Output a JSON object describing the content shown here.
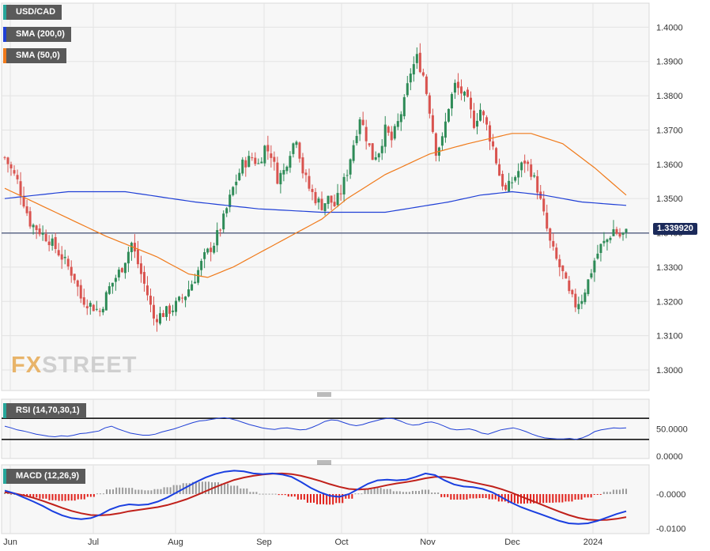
{
  "legend": {
    "symbol": "USD/CAD",
    "sma200": "SMA (200,0)",
    "sma50": "SMA (50,0)",
    "rsi": "RSI (14,70,30,1)",
    "macd": "MACD (12,26,9)"
  },
  "logo": {
    "fx": "FX",
    "street": "STREET"
  },
  "current_price": "1.339920",
  "colors": {
    "up": "#2e8b57",
    "down": "#d9534f",
    "sma200": "#1f3fd6",
    "sma50": "#f07a1a",
    "rsi": "#1f3fd6",
    "macd": "#1a3fe0",
    "signal": "#c0201a",
    "hist_pos": "#9b9b9b",
    "hist_neg": "#e0201a"
  },
  "chart_data": [
    {
      "type": "candlestick",
      "title": "USD/CAD",
      "x_ticks": [
        "Jun",
        "Jul",
        "Aug",
        "Sep",
        "Oct",
        "Nov",
        "Dec",
        "2024"
      ],
      "y_ticks": [
        "1.4000",
        "1.3900",
        "1.3800",
        "1.3700",
        "1.3600",
        "1.3500",
        "1.3400",
        "1.3300",
        "1.3200",
        "1.3100",
        "1.3000"
      ],
      "ylim": [
        1.294,
        1.407
      ],
      "current_price": 1.33992,
      "close_path": [
        [
          0,
          1.362
        ],
        [
          4,
          1.355
        ],
        [
          8,
          1.343
        ],
        [
          14,
          1.338
        ],
        [
          18,
          1.333
        ],
        [
          22,
          1.327
        ],
        [
          24,
          1.321
        ],
        [
          27,
          1.319
        ],
        [
          30,
          1.317
        ],
        [
          33,
          1.324
        ],
        [
          37,
          1.33
        ],
        [
          40,
          1.337
        ],
        [
          43,
          1.328
        ],
        [
          45,
          1.322
        ],
        [
          47,
          1.315
        ],
        [
          49,
          1.316
        ],
        [
          53,
          1.318
        ],
        [
          57,
          1.322
        ],
        [
          60,
          1.327
        ],
        [
          63,
          1.333
        ],
        [
          66,
          1.337
        ],
        [
          69,
          1.344
        ],
        [
          72,
          1.353
        ],
        [
          75,
          1.36
        ],
        [
          78,
          1.362
        ],
        [
          80,
          1.36
        ],
        [
          82,
          1.365
        ],
        [
          84,
          1.363
        ],
        [
          86,
          1.356
        ],
        [
          88,
          1.358
        ],
        [
          90,
          1.364
        ],
        [
          92,
          1.368
        ],
        [
          94,
          1.358
        ],
        [
          96,
          1.353
        ],
        [
          98,
          1.35
        ],
        [
          100,
          1.348
        ],
        [
          102,
          1.35
        ],
        [
          104,
          1.348
        ],
        [
          106,
          1.352
        ],
        [
          108,
          1.358
        ],
        [
          110,
          1.366
        ],
        [
          112,
          1.374
        ],
        [
          114,
          1.368
        ],
        [
          116,
          1.362
        ],
        [
          118,
          1.364
        ],
        [
          120,
          1.37
        ],
        [
          122,
          1.367
        ],
        [
          124,
          1.372
        ],
        [
          126,
          1.378
        ],
        [
          128,
          1.387
        ],
        [
          130,
          1.391
        ],
        [
          132,
          1.386
        ],
        [
          134,
          1.376
        ],
        [
          136,
          1.364
        ],
        [
          138,
          1.367
        ],
        [
          140,
          1.377
        ],
        [
          142,
          1.383
        ],
        [
          144,
          1.381
        ],
        [
          146,
          1.378
        ],
        [
          148,
          1.372
        ],
        [
          150,
          1.376
        ],
        [
          152,
          1.371
        ],
        [
          154,
          1.365
        ],
        [
          156,
          1.357
        ],
        [
          158,
          1.352
        ],
        [
          160,
          1.355
        ],
        [
          162,
          1.358
        ],
        [
          164,
          1.361
        ],
        [
          166,
          1.358
        ],
        [
          168,
          1.353
        ],
        [
          170,
          1.345
        ],
        [
          172,
          1.337
        ],
        [
          174,
          1.332
        ],
        [
          176,
          1.328
        ],
        [
          178,
          1.322
        ],
        [
          180,
          1.319
        ],
        [
          182,
          1.321
        ],
        [
          184,
          1.326
        ],
        [
          186,
          1.332
        ],
        [
          188,
          1.336
        ],
        [
          190,
          1.338
        ],
        [
          192,
          1.341
        ],
        [
          194,
          1.339
        ],
        [
          196,
          1.34
        ]
      ],
      "sma200_path": [
        [
          0,
          1.35
        ],
        [
          20,
          1.352
        ],
        [
          38,
          1.352
        ],
        [
          60,
          1.349
        ],
        [
          80,
          1.347
        ],
        [
          100,
          1.346
        ],
        [
          120,
          1.346
        ],
        [
          140,
          1.349
        ],
        [
          150,
          1.351
        ],
        [
          160,
          1.352
        ],
        [
          170,
          1.351
        ],
        [
          182,
          1.349
        ],
        [
          196,
          1.348
        ]
      ],
      "sma50_path": [
        [
          0,
          1.353
        ],
        [
          16,
          1.346
        ],
        [
          32,
          1.339
        ],
        [
          48,
          1.333
        ],
        [
          58,
          1.328
        ],
        [
          64,
          1.327
        ],
        [
          72,
          1.33
        ],
        [
          86,
          1.337
        ],
        [
          100,
          1.344
        ],
        [
          108,
          1.35
        ],
        [
          120,
          1.357
        ],
        [
          134,
          1.363
        ],
        [
          146,
          1.366
        ],
        [
          160,
          1.369
        ],
        [
          166,
          1.369
        ],
        [
          176,
          1.366
        ],
        [
          186,
          1.359
        ],
        [
          196,
          1.351
        ]
      ]
    },
    {
      "type": "line",
      "title": "RSI (14,70,30,1)",
      "y_ticks": [
        "50.0000",
        "0.0000"
      ],
      "levels": [
        70,
        30
      ],
      "values": [
        55,
        52,
        48,
        46,
        43,
        40,
        38,
        36,
        35,
        37,
        36,
        38,
        41,
        42,
        44,
        46,
        52,
        55,
        50,
        46,
        42,
        40,
        38,
        38,
        40,
        44,
        47,
        50,
        54,
        58,
        62,
        65,
        66,
        68,
        70,
        71,
        69,
        66,
        62,
        58,
        55,
        52,
        50,
        49,
        51,
        52,
        50,
        48,
        49,
        53,
        58,
        64,
        67,
        66,
        62,
        58,
        56,
        58,
        62,
        65,
        68,
        70,
        69,
        65,
        60,
        57,
        58,
        62,
        63,
        60,
        55,
        50,
        48,
        49,
        50,
        47,
        42,
        40,
        44,
        48,
        50,
        52,
        49,
        45,
        40,
        36,
        33,
        32,
        31,
        31,
        32,
        30,
        33,
        38,
        45,
        48,
        50,
        52,
        51,
        52
      ]
    },
    {
      "type": "line",
      "title": "MACD (12,26,9)",
      "y_ticks": [
        "-0.0000",
        "-0.0100"
      ],
      "macd": [
        0.001,
        0.0002,
        -0.001,
        -0.0022,
        -0.0035,
        -0.005,
        -0.0062,
        -0.007,
        -0.0073,
        -0.007,
        -0.006,
        -0.0045,
        -0.0035,
        -0.003,
        -0.0032,
        -0.003,
        -0.0022,
        -0.001,
        0.0005,
        0.002,
        0.0035,
        0.0048,
        0.0058,
        0.0065,
        0.0068,
        0.0066,
        0.006,
        0.0058,
        0.006,
        0.0057,
        0.005,
        0.0035,
        0.0018,
        0.0005,
        -0.0005,
        -0.0008,
        0.0,
        0.0015,
        0.003,
        0.004,
        0.0042,
        0.004,
        0.0042,
        0.005,
        0.006,
        0.0055,
        0.004,
        0.0028,
        0.0022,
        0.002,
        0.0015,
        0.0005,
        -0.001,
        -0.0025,
        -0.0038,
        -0.0048,
        -0.0058,
        -0.0068,
        -0.0078,
        -0.0085,
        -0.0087,
        -0.0085,
        -0.0078,
        -0.0068,
        -0.0058,
        -0.005
      ],
      "signal": [
        0.0005,
        0.0002,
        -0.0004,
        -0.0011,
        -0.002,
        -0.003,
        -0.004,
        -0.0049,
        -0.0056,
        -0.0061,
        -0.0062,
        -0.006,
        -0.0056,
        -0.005,
        -0.0046,
        -0.0042,
        -0.0038,
        -0.0032,
        -0.0024,
        -0.0015,
        -0.0004,
        0.0008,
        0.002,
        0.0031,
        0.0041,
        0.0048,
        0.0053,
        0.0057,
        0.0059,
        0.006,
        0.0058,
        0.0053,
        0.0046,
        0.0038,
        0.0029,
        0.0021,
        0.0015,
        0.0013,
        0.0015,
        0.002,
        0.0026,
        0.0031,
        0.0035,
        0.004,
        0.0046,
        0.005,
        0.005,
        0.0046,
        0.004,
        0.0034,
        0.0028,
        0.0022,
        0.0014,
        0.0004,
        -0.0007,
        -0.0018,
        -0.0029,
        -0.004,
        -0.0051,
        -0.0061,
        -0.0069,
        -0.0074,
        -0.0076,
        -0.0075,
        -0.0072,
        -0.0067
      ]
    }
  ]
}
